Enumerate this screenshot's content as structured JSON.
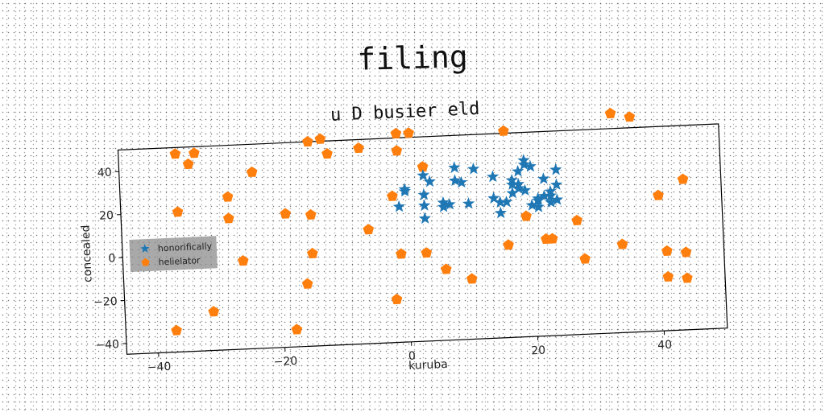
{
  "figure": {
    "suptitle": "filing"
  },
  "chart_data": {
    "type": "scatter",
    "title": "u D busier eld",
    "xlabel": "kuruba",
    "ylabel": "concealed",
    "xlim": [
      -45,
      50
    ],
    "ylim": [
      -45,
      50
    ],
    "xticks": [
      -40,
      -20,
      0,
      20,
      40
    ],
    "yticks": [
      -40,
      -20,
      0,
      20,
      40
    ],
    "grid": false,
    "legend_position": "center-left",
    "series": [
      {
        "name": "honorifically",
        "marker": "star",
        "color": "#1f77b4",
        "points": [
          [
            -1,
            18
          ],
          [
            0,
            25
          ],
          [
            0,
            26
          ],
          [
            3,
            12
          ],
          [
            3,
            18
          ],
          [
            3,
            23
          ],
          [
            3,
            32
          ],
          [
            4,
            29
          ],
          [
            6,
            19
          ],
          [
            6,
            17
          ],
          [
            7,
            18
          ],
          [
            8,
            29
          ],
          [
            8,
            35
          ],
          [
            9,
            28
          ],
          [
            10,
            18
          ],
          [
            11,
            34
          ],
          [
            14,
            30
          ],
          [
            14,
            20
          ],
          [
            15,
            18
          ],
          [
            15,
            13
          ],
          [
            16,
            18
          ],
          [
            17,
            26
          ],
          [
            17,
            22
          ],
          [
            17,
            28
          ],
          [
            18,
            24
          ],
          [
            18,
            32
          ],
          [
            18,
            26
          ],
          [
            19,
            35
          ],
          [
            19,
            23
          ],
          [
            19,
            37
          ],
          [
            20,
            34
          ],
          [
            20,
            16
          ],
          [
            21,
            15
          ],
          [
            21,
            18
          ],
          [
            21,
            19
          ],
          [
            22,
            28
          ],
          [
            22,
            20
          ],
          [
            23,
            22
          ],
          [
            23,
            17
          ],
          [
            23,
            20
          ],
          [
            24,
            18
          ],
          [
            24,
            25
          ],
          [
            24,
            32
          ]
        ]
      },
      {
        "name": "helielator",
        "marker": "pentagon",
        "color": "#ff7f0e",
        "points": [
          [
            -37,
            -35
          ],
          [
            -36,
            47
          ],
          [
            -36,
            20
          ],
          [
            -34,
            42
          ],
          [
            -33,
            47
          ],
          [
            -31,
            -27
          ],
          [
            -28,
            16
          ],
          [
            -28,
            26
          ],
          [
            -26,
            -4
          ],
          [
            -24,
            37
          ],
          [
            -19,
            17
          ],
          [
            -18,
            -37
          ],
          [
            -16,
            -16
          ],
          [
            -15,
            16
          ],
          [
            -15,
            50
          ],
          [
            -15,
            -2
          ],
          [
            -13,
            51
          ],
          [
            -12,
            44
          ],
          [
            -7,
            46
          ],
          [
            -6,
            8
          ],
          [
            -2,
            23
          ],
          [
            -2,
            -25
          ],
          [
            -1,
            52
          ],
          [
            -1,
            44
          ],
          [
            -1,
            -4
          ],
          [
            1,
            52
          ],
          [
            3,
            36
          ],
          [
            3,
            -4
          ],
          [
            6,
            -12
          ],
          [
            10,
            -17
          ],
          [
            16,
            -2
          ],
          [
            16,
            51
          ],
          [
            19,
            11
          ],
          [
            22,
            0
          ],
          [
            23,
            0
          ],
          [
            27,
            8
          ],
          [
            28,
            -10
          ],
          [
            33,
            57
          ],
          [
            34,
            -4
          ],
          [
            36,
            55
          ],
          [
            40,
            18
          ],
          [
            41,
            -8
          ],
          [
            41,
            -20
          ],
          [
            44,
            -9
          ],
          [
            44,
            -21
          ],
          [
            44,
            25
          ]
        ]
      }
    ]
  }
}
